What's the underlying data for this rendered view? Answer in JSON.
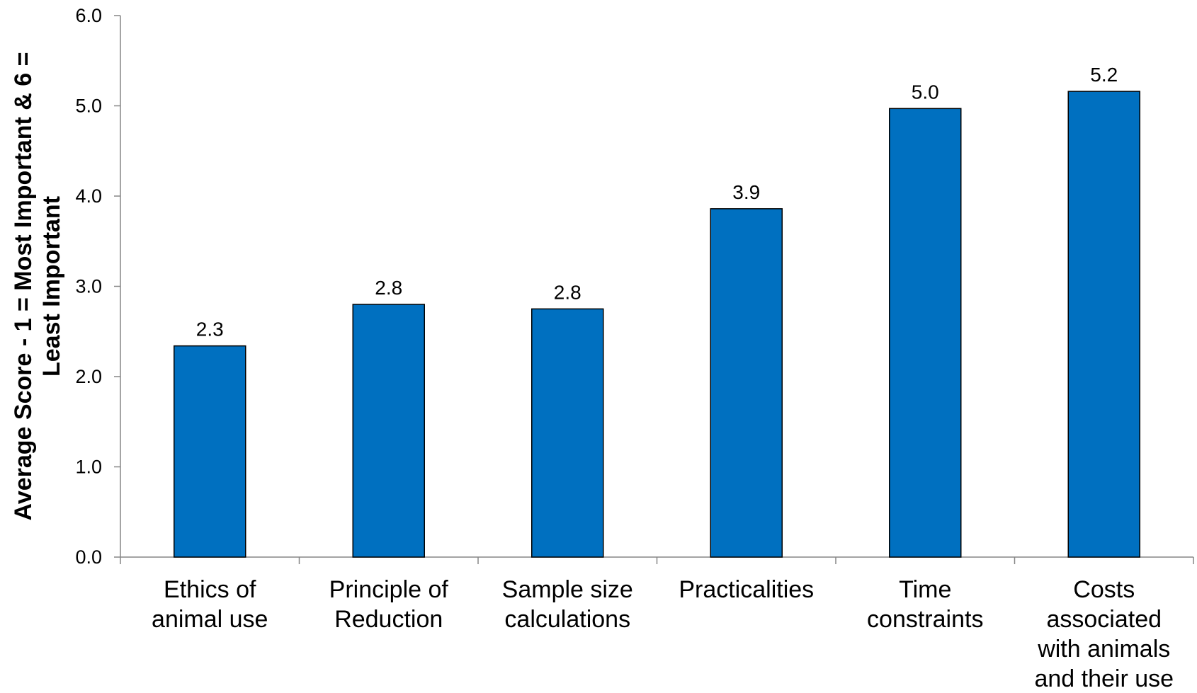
{
  "chart_data": {
    "type": "bar",
    "title": "",
    "xlabel": "",
    "ylabel": [
      "Average Score - 1 = Most Important & 6 =",
      "Least Important"
    ],
    "ylim": [
      0,
      6
    ],
    "yticks": [
      "0.0",
      "1.0",
      "2.0",
      "3.0",
      "4.0",
      "5.0",
      "6.0"
    ],
    "grid": false,
    "legend": "none",
    "bar_color": "#0070c0",
    "categories": [
      [
        "Ethics of",
        "animal use"
      ],
      [
        "Principle of",
        "Reduction"
      ],
      [
        "Sample size",
        "calculations"
      ],
      [
        "Practicalities"
      ],
      [
        "Time",
        "constraints"
      ],
      [
        "Costs",
        "associated",
        "with animals",
        "and their use"
      ]
    ],
    "values": [
      2.34,
      2.8,
      2.75,
      3.86,
      4.97,
      5.16
    ],
    "data_labels": [
      "2.3",
      "2.8",
      "2.8",
      "3.9",
      "5.0",
      "5.2"
    ]
  }
}
